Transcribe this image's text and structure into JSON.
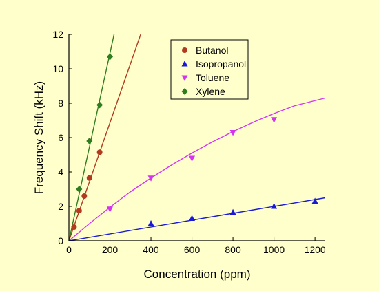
{
  "chart_data": {
    "type": "scatter",
    "title": "",
    "xlabel": "Concentration (ppm)",
    "ylabel": "Frequency Shift (kHz)",
    "xlim": [
      0,
      1250
    ],
    "ylim": [
      0,
      12
    ],
    "xticks": [
      0,
      200,
      400,
      600,
      800,
      1000,
      1200
    ],
    "yticks": [
      0,
      2,
      4,
      6,
      8,
      10,
      12
    ],
    "grid": false,
    "legend_position": "top-right",
    "background_color": "#ffffcc",
    "series": [
      {
        "name": "Butanol",
        "color": "#b23a1e",
        "marker": "circle",
        "points": [
          [
            25,
            0.8
          ],
          [
            50,
            1.75
          ],
          [
            75,
            2.6
          ],
          [
            100,
            3.65
          ],
          [
            150,
            5.15
          ]
        ],
        "fit": "linear",
        "fit_slope": 0.0343
      },
      {
        "name": "Isopropanol",
        "color": "#1a1ad6",
        "marker": "triangle-up",
        "points": [
          [
            400,
            1.0
          ],
          [
            600,
            1.3
          ],
          [
            800,
            1.65
          ],
          [
            1000,
            2.0
          ],
          [
            1200,
            2.3
          ]
        ],
        "fit": "linear",
        "fit_slope": 0.002
      },
      {
        "name": "Toluene",
        "color": "#d633f0",
        "marker": "triangle-down",
        "points": [
          [
            200,
            1.85
          ],
          [
            400,
            3.65
          ],
          [
            600,
            4.8
          ],
          [
            800,
            6.3
          ],
          [
            1000,
            7.05
          ]
        ],
        "fit": "curve",
        "fit_curve": [
          [
            0,
            0
          ],
          [
            100,
            1.0
          ],
          [
            200,
            1.95
          ],
          [
            300,
            2.85
          ],
          [
            400,
            3.65
          ],
          [
            500,
            4.4
          ],
          [
            600,
            5.1
          ],
          [
            700,
            5.75
          ],
          [
            800,
            6.35
          ],
          [
            900,
            6.9
          ],
          [
            1000,
            7.4
          ],
          [
            1100,
            7.85
          ],
          [
            1250,
            8.3
          ]
        ]
      },
      {
        "name": "Xylene",
        "color": "#2e7d1e",
        "marker": "diamond",
        "points": [
          [
            50,
            3.0
          ],
          [
            100,
            5.8
          ],
          [
            150,
            7.9
          ],
          [
            200,
            10.7
          ]
        ],
        "fit": "linear",
        "fit_slope": 0.0545
      }
    ]
  }
}
